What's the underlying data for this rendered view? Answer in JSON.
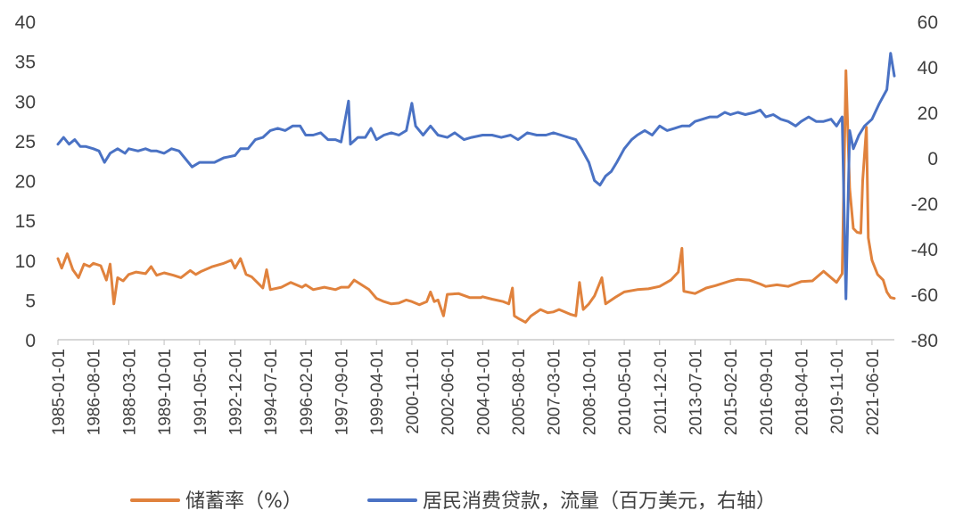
{
  "chart_data": {
    "type": "line",
    "title": "",
    "xlabel": "",
    "ylabel_left": "",
    "ylabel_right": "",
    "y_left_range": [
      0,
      40
    ],
    "y_left_ticks": [
      "0",
      "5",
      "10",
      "15",
      "20",
      "25",
      "30",
      "35",
      "40"
    ],
    "y_right_range": [
      -80,
      60
    ],
    "y_right_ticks": [
      "-80",
      "-60",
      "-40",
      "-20",
      "0",
      "20",
      "40",
      "60"
    ],
    "x_range": [
      "1985-01",
      "2022-06"
    ],
    "x_tick_labels": [
      "1985-01-01",
      "1986-08-01",
      "1988-03-01",
      "1989-10-01",
      "1991-05-01",
      "1992-12-01",
      "1994-07-01",
      "1996-02-01",
      "1997-09-01",
      "1999-04-01",
      "2000-11-01",
      "2002-06-01",
      "2004-01-01",
      "2005-08-01",
      "2007-03-01",
      "2008-10-01",
      "2010-05-01",
      "2011-12-01",
      "2013-07-01",
      "2015-02-01",
      "2016-09-01",
      "2018-04-01",
      "2019-11-01",
      "2021-06-01"
    ],
    "grid": false,
    "legend_position": "bottom",
    "series": [
      {
        "name": "储蓄率（%）",
        "axis": "left",
        "color": "#E0823D",
        "points": [
          [
            "1985-01",
            10.2
          ],
          [
            "1985-03",
            9.0
          ],
          [
            "1985-06",
            10.8
          ],
          [
            "1985-09",
            8.8
          ],
          [
            "1985-12",
            7.8
          ],
          [
            "1986-03",
            9.5
          ],
          [
            "1986-06",
            9.2
          ],
          [
            "1986-08",
            9.6
          ],
          [
            "1986-12",
            9.3
          ],
          [
            "1987-03",
            7.5
          ],
          [
            "1987-05",
            9.5
          ],
          [
            "1987-07",
            4.5
          ],
          [
            "1987-09",
            7.8
          ],
          [
            "1987-12",
            7.4
          ],
          [
            "1988-03",
            8.2
          ],
          [
            "1988-07",
            8.5
          ],
          [
            "1988-12",
            8.3
          ],
          [
            "1989-03",
            9.2
          ],
          [
            "1989-06",
            8.1
          ],
          [
            "1989-10",
            8.4
          ],
          [
            "1990-03",
            8.1
          ],
          [
            "1990-07",
            7.8
          ],
          [
            "1990-12",
            8.7
          ],
          [
            "1991-03",
            8.2
          ],
          [
            "1991-06",
            8.6
          ],
          [
            "1991-12",
            9.2
          ],
          [
            "1992-06",
            9.6
          ],
          [
            "1992-10",
            10.0
          ],
          [
            "1992-12",
            9.0
          ],
          [
            "1993-03",
            10.2
          ],
          [
            "1993-06",
            8.2
          ],
          [
            "1993-09",
            7.9
          ],
          [
            "1993-12",
            7.2
          ],
          [
            "1994-03",
            6.5
          ],
          [
            "1994-05",
            8.8
          ],
          [
            "1994-07",
            6.3
          ],
          [
            "1995-01",
            6.6
          ],
          [
            "1995-06",
            7.2
          ],
          [
            "1995-12",
            6.6
          ],
          [
            "1996-02",
            6.9
          ],
          [
            "1996-06",
            6.3
          ],
          [
            "1996-12",
            6.6
          ],
          [
            "1997-06",
            6.3
          ],
          [
            "1997-09",
            6.6
          ],
          [
            "1998-01",
            6.6
          ],
          [
            "1998-04",
            7.5
          ],
          [
            "1998-08",
            6.9
          ],
          [
            "1998-12",
            6.3
          ],
          [
            "1999-04",
            5.2
          ],
          [
            "1999-08",
            4.8
          ],
          [
            "1999-12",
            4.5
          ],
          [
            "2000-04",
            4.6
          ],
          [
            "2000-08",
            5.0
          ],
          [
            "2000-11",
            4.8
          ],
          [
            "2001-03",
            4.4
          ],
          [
            "2001-07",
            4.8
          ],
          [
            "2001-09",
            6.0
          ],
          [
            "2001-11",
            4.8
          ],
          [
            "2002-01",
            5.0
          ],
          [
            "2002-04",
            3.0
          ],
          [
            "2002-06",
            5.7
          ],
          [
            "2002-12",
            5.8
          ],
          [
            "2003-06",
            5.3
          ],
          [
            "2003-12",
            5.3
          ],
          [
            "2004-01",
            5.4
          ],
          [
            "2004-06",
            5.1
          ],
          [
            "2004-12",
            4.8
          ],
          [
            "2005-03",
            4.5
          ],
          [
            "2005-05",
            6.5
          ],
          [
            "2005-06",
            3.0
          ],
          [
            "2005-08",
            2.7
          ],
          [
            "2005-12",
            2.2
          ],
          [
            "2006-03",
            3.0
          ],
          [
            "2006-08",
            3.8
          ],
          [
            "2006-12",
            3.4
          ],
          [
            "2007-03",
            3.5
          ],
          [
            "2007-06",
            3.8
          ],
          [
            "2007-12",
            3.2
          ],
          [
            "2008-03",
            3.0
          ],
          [
            "2008-05",
            7.2
          ],
          [
            "2008-07",
            3.8
          ],
          [
            "2008-10",
            4.5
          ],
          [
            "2009-01",
            5.5
          ],
          [
            "2009-05",
            7.8
          ],
          [
            "2009-07",
            4.5
          ],
          [
            "2009-12",
            5.3
          ],
          [
            "2010-05",
            6.0
          ],
          [
            "2010-12",
            6.3
          ],
          [
            "2011-06",
            6.4
          ],
          [
            "2011-12",
            6.7
          ],
          [
            "2012-06",
            7.5
          ],
          [
            "2012-10",
            8.5
          ],
          [
            "2012-12",
            11.5
          ],
          [
            "2013-01",
            6.1
          ],
          [
            "2013-07",
            5.8
          ],
          [
            "2014-01",
            6.5
          ],
          [
            "2014-06",
            6.8
          ],
          [
            "2015-02",
            7.4
          ],
          [
            "2015-06",
            7.6
          ],
          [
            "2015-12",
            7.5
          ],
          [
            "2016-06",
            7.0
          ],
          [
            "2016-09",
            6.7
          ],
          [
            "2017-03",
            6.9
          ],
          [
            "2017-09",
            6.7
          ],
          [
            "2018-04",
            7.3
          ],
          [
            "2018-10",
            7.4
          ],
          [
            "2019-04",
            8.6
          ],
          [
            "2019-11",
            7.2
          ],
          [
            "2020-02",
            8.3
          ],
          [
            "2020-04",
            33.8
          ],
          [
            "2020-06",
            19.0
          ],
          [
            "2020-08",
            14.0
          ],
          [
            "2020-10",
            13.5
          ],
          [
            "2020-12",
            13.4
          ],
          [
            "2021-01",
            20.0
          ],
          [
            "2021-03",
            26.7
          ],
          [
            "2021-04",
            12.8
          ],
          [
            "2021-06",
            10.0
          ],
          [
            "2021-09",
            8.2
          ],
          [
            "2021-12",
            7.5
          ],
          [
            "2022-02",
            6.0
          ],
          [
            "2022-04",
            5.3
          ],
          [
            "2022-06",
            5.2
          ]
        ]
      },
      {
        "name": "居民消费贷款，流量（百万美元，右轴）",
        "axis": "right",
        "color": "#4A72C4",
        "points": [
          [
            "1985-01",
            6
          ],
          [
            "1985-04",
            9
          ],
          [
            "1985-07",
            6
          ],
          [
            "1985-10",
            8
          ],
          [
            "1986-01",
            5
          ],
          [
            "1986-04",
            5
          ],
          [
            "1986-08",
            4
          ],
          [
            "1986-11",
            3
          ],
          [
            "1987-02",
            -2
          ],
          [
            "1987-05",
            2
          ],
          [
            "1987-09",
            4
          ],
          [
            "1988-01",
            2
          ],
          [
            "1988-03",
            4
          ],
          [
            "1988-08",
            3
          ],
          [
            "1988-12",
            4
          ],
          [
            "1989-03",
            3
          ],
          [
            "1989-06",
            3
          ],
          [
            "1989-10",
            2
          ],
          [
            "1990-02",
            4
          ],
          [
            "1990-06",
            3
          ],
          [
            "1990-09",
            0
          ],
          [
            "1991-01",
            -4
          ],
          [
            "1991-05",
            -2
          ],
          [
            "1991-09",
            -2
          ],
          [
            "1992-01",
            -2
          ],
          [
            "1992-06",
            0
          ],
          [
            "1992-12",
            1
          ],
          [
            "1993-03",
            4
          ],
          [
            "1993-07",
            4
          ],
          [
            "1993-11",
            8
          ],
          [
            "1994-03",
            9
          ],
          [
            "1994-07",
            12
          ],
          [
            "1994-11",
            13
          ],
          [
            "1995-03",
            12
          ],
          [
            "1995-07",
            14
          ],
          [
            "1995-11",
            14
          ],
          [
            "1996-02",
            10
          ],
          [
            "1996-06",
            10
          ],
          [
            "1996-10",
            11
          ],
          [
            "1997-02",
            8
          ],
          [
            "1997-06",
            8
          ],
          [
            "1997-09",
            7
          ],
          [
            "1998-01",
            25
          ],
          [
            "1998-02",
            6
          ],
          [
            "1998-06",
            9
          ],
          [
            "1998-10",
            9
          ],
          [
            "1999-01",
            13
          ],
          [
            "1999-04",
            8
          ],
          [
            "1999-08",
            10
          ],
          [
            "1999-12",
            11
          ],
          [
            "2000-04",
            10
          ],
          [
            "2000-08",
            12
          ],
          [
            "2000-11",
            24
          ],
          [
            "2001-01",
            14
          ],
          [
            "2001-05",
            10
          ],
          [
            "2001-09",
            14
          ],
          [
            "2002-01",
            10
          ],
          [
            "2002-06",
            9
          ],
          [
            "2002-10",
            11
          ],
          [
            "2003-03",
            8
          ],
          [
            "2003-07",
            9
          ],
          [
            "2004-01",
            10
          ],
          [
            "2004-06",
            10
          ],
          [
            "2004-11",
            9
          ],
          [
            "2005-04",
            10
          ],
          [
            "2005-08",
            8
          ],
          [
            "2006-01",
            11
          ],
          [
            "2006-06",
            10
          ],
          [
            "2006-11",
            10
          ],
          [
            "2007-03",
            11
          ],
          [
            "2007-07",
            10
          ],
          [
            "2007-11",
            9
          ],
          [
            "2008-03",
            8
          ],
          [
            "2008-06",
            4
          ],
          [
            "2008-10",
            -2
          ],
          [
            "2009-01",
            -10
          ],
          [
            "2009-04",
            -12
          ],
          [
            "2009-07",
            -8
          ],
          [
            "2009-10",
            -6
          ],
          [
            "2010-01",
            -2
          ],
          [
            "2010-05",
            4
          ],
          [
            "2010-09",
            8
          ],
          [
            "2010-12",
            10
          ],
          [
            "2011-04",
            12
          ],
          [
            "2011-08",
            10
          ],
          [
            "2011-12",
            14
          ],
          [
            "2012-04",
            12
          ],
          [
            "2012-08",
            13
          ],
          [
            "2012-12",
            14
          ],
          [
            "2013-04",
            14
          ],
          [
            "2013-07",
            16
          ],
          [
            "2013-11",
            17
          ],
          [
            "2014-03",
            18
          ],
          [
            "2014-07",
            18
          ],
          [
            "2014-11",
            20
          ],
          [
            "2015-02",
            19
          ],
          [
            "2015-06",
            20
          ],
          [
            "2015-10",
            19
          ],
          [
            "2016-03",
            20
          ],
          [
            "2016-06",
            21
          ],
          [
            "2016-09",
            18
          ],
          [
            "2017-01",
            19
          ],
          [
            "2017-05",
            17
          ],
          [
            "2017-09",
            16
          ],
          [
            "2018-01",
            14
          ],
          [
            "2018-04",
            16
          ],
          [
            "2018-08",
            18
          ],
          [
            "2018-12",
            16
          ],
          [
            "2019-04",
            16
          ],
          [
            "2019-08",
            17
          ],
          [
            "2019-11",
            14
          ],
          [
            "2020-02",
            18
          ],
          [
            "2020-04",
            -62
          ],
          [
            "2020-06",
            12
          ],
          [
            "2020-08",
            4
          ],
          [
            "2020-11",
            10
          ],
          [
            "2021-02",
            14
          ],
          [
            "2021-06",
            17
          ],
          [
            "2021-10",
            24
          ],
          [
            "2022-02",
            30
          ],
          [
            "2022-04",
            46
          ],
          [
            "2022-06",
            36
          ]
        ]
      }
    ]
  }
}
